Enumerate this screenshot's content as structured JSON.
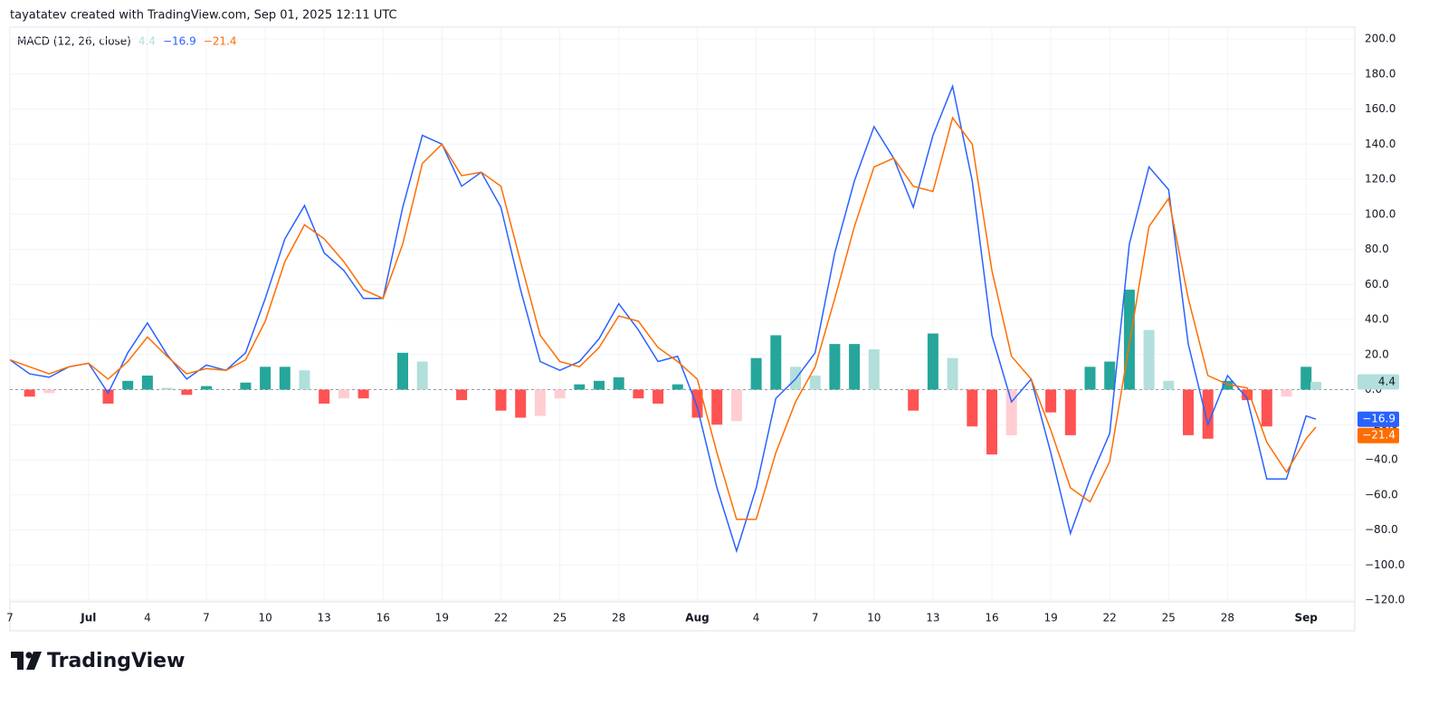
{
  "chart_data": {
    "type": "macd",
    "caption": "tayatatev created with TradingView.com, Sep 01, 2025 12:11 UTC",
    "title": "MACD (12, 26, close)",
    "watermark": "TradingView",
    "x": [
      "2025-06-27",
      "2025-06-28",
      "2025-06-29",
      "2025-06-30",
      "2025-07-01",
      "2025-07-02",
      "2025-07-03",
      "2025-07-04",
      "2025-07-05",
      "2025-07-06",
      "2025-07-07",
      "2025-07-08",
      "2025-07-09",
      "2025-07-10",
      "2025-07-11",
      "2025-07-12",
      "2025-07-13",
      "2025-07-14",
      "2025-07-15",
      "2025-07-16",
      "2025-07-17",
      "2025-07-18",
      "2025-07-19",
      "2025-07-20",
      "2025-07-21",
      "2025-07-22",
      "2025-07-23",
      "2025-07-24",
      "2025-07-25",
      "2025-07-26",
      "2025-07-27",
      "2025-07-28",
      "2025-07-29",
      "2025-07-30",
      "2025-07-31",
      "2025-08-01",
      "2025-08-02",
      "2025-08-03",
      "2025-08-04",
      "2025-08-05",
      "2025-08-06",
      "2025-08-07",
      "2025-08-08",
      "2025-08-09",
      "2025-08-10",
      "2025-08-11",
      "2025-08-12",
      "2025-08-13",
      "2025-08-14",
      "2025-08-15",
      "2025-08-16",
      "2025-08-17",
      "2025-08-18",
      "2025-08-19",
      "2025-08-20",
      "2025-08-21",
      "2025-08-22",
      "2025-08-23",
      "2025-08-24",
      "2025-08-25",
      "2025-08-26",
      "2025-08-27",
      "2025-08-28",
      "2025-08-29",
      "2025-08-30",
      "2025-08-31",
      "2025-09-01",
      "2025-09-01 12:00"
    ],
    "series": [
      {
        "color": "#b2dfdb",
        "rising_color": "#26a69a",
        "falling_neg_color": "#ff5252",
        "rising_neg_color": "#ffcdd2",
        "last_value": 4.4,
        "last_label": "4.4",
        "values": [
          0,
          -4,
          -2,
          0,
          0,
          -8,
          5,
          8,
          1,
          -3,
          2,
          0,
          4,
          13,
          13,
          11,
          -8,
          -5,
          -5,
          0,
          21,
          16,
          0,
          -6,
          0,
          -12,
          -16,
          -15,
          -5,
          3,
          5,
          7,
          -5,
          -8,
          3,
          -16,
          -20,
          -18,
          18,
          31,
          13,
          8,
          26,
          26,
          23,
          0,
          -12,
          32,
          18,
          -21,
          -37,
          -26,
          0,
          -13,
          -26,
          13,
          16,
          57,
          34,
          5,
          -26,
          -28,
          5,
          -6,
          -21,
          -4,
          13,
          4.4
        ]
      },
      {
        "color": "#2962ff",
        "last_value": -16.9,
        "last_label": "−16.9",
        "values": [
          17,
          9,
          7,
          13,
          15,
          -2,
          21,
          38,
          20,
          6,
          14,
          11,
          21,
          52,
          86,
          105,
          78,
          68,
          52,
          52,
          104,
          145,
          140,
          116,
          124,
          104,
          57,
          16,
          11,
          16,
          29,
          49,
          34,
          16,
          19,
          -10,
          -56,
          -92,
          -56,
          -5,
          6,
          21,
          78,
          119,
          150,
          132,
          104,
          145,
          173,
          119,
          31,
          -7,
          6,
          -36,
          -82,
          -51,
          -25,
          83,
          127,
          114,
          26,
          -20,
          8,
          -5,
          -51,
          -51,
          -15,
          -16.9
        ]
      },
      {
        "color": "#ff6d00",
        "last_value": -21.4,
        "last_label": "−21.4",
        "values": [
          17,
          13,
          9,
          13,
          15,
          6,
          16,
          30,
          19,
          9,
          12,
          11,
          17,
          39,
          73,
          94,
          86,
          73,
          57,
          52,
          83,
          129,
          140,
          122,
          124,
          116,
          73,
          31,
          16,
          13,
          24,
          42,
          39,
          24,
          16,
          6,
          -36,
          -74,
          -74,
          -36,
          -7,
          13,
          52,
          93,
          127,
          132,
          116,
          113,
          155,
          140,
          68,
          19,
          6,
          -23,
          -56,
          -64,
          -41,
          26,
          93,
          109,
          52,
          8,
          3,
          1,
          -30,
          -47,
          -28,
          -21.4
        ]
      }
    ],
    "ylim": [
      -120,
      200
    ],
    "yticks": [
      {
        "value": 200,
        "label": "200.0"
      },
      {
        "value": 180,
        "label": "180.0"
      },
      {
        "value": 160,
        "label": "160.0"
      },
      {
        "value": 140,
        "label": "140.0"
      },
      {
        "value": 120,
        "label": "120.0"
      },
      {
        "value": 100,
        "label": "100.0"
      },
      {
        "value": 80,
        "label": "80.0"
      },
      {
        "value": 60,
        "label": "60.0"
      },
      {
        "value": 40,
        "label": "40.0"
      },
      {
        "value": 20,
        "label": "20.0"
      },
      {
        "value": 0,
        "label": "0.0"
      },
      {
        "value": -20,
        "label": "−20.0"
      },
      {
        "value": -40,
        "label": "−40.0"
      },
      {
        "value": -60,
        "label": "−60.0"
      },
      {
        "value": -80,
        "label": "−80.0"
      },
      {
        "value": -100,
        "label": "−100.0"
      },
      {
        "value": -120,
        "label": "−120.0"
      }
    ],
    "xticks": [
      {
        "value": "2025-06-27",
        "label": "7"
      },
      {
        "value": "2025-07-01",
        "label": "Jul"
      },
      {
        "value": "2025-07-04",
        "label": "4"
      },
      {
        "value": "2025-07-07",
        "label": "7"
      },
      {
        "value": "2025-07-10",
        "label": "10"
      },
      {
        "value": "2025-07-13",
        "label": "13"
      },
      {
        "value": "2025-07-16",
        "label": "16"
      },
      {
        "value": "2025-07-19",
        "label": "19"
      },
      {
        "value": "2025-07-22",
        "label": "22"
      },
      {
        "value": "2025-07-25",
        "label": "25"
      },
      {
        "value": "2025-07-28",
        "label": "28"
      },
      {
        "value": "2025-08-01",
        "label": "Aug"
      },
      {
        "value": "2025-08-04",
        "label": "4"
      },
      {
        "value": "2025-08-07",
        "label": "7"
      },
      {
        "value": "2025-08-10",
        "label": "10"
      },
      {
        "value": "2025-08-13",
        "label": "13"
      },
      {
        "value": "2025-08-16",
        "label": "16"
      },
      {
        "value": "2025-08-19",
        "label": "19"
      },
      {
        "value": "2025-08-22",
        "label": "22"
      },
      {
        "value": "2025-08-25",
        "label": "25"
      },
      {
        "value": "2025-08-28",
        "label": "28"
      },
      {
        "value": "2025-09-01",
        "label": "Sep"
      }
    ],
    "grid": true
  }
}
